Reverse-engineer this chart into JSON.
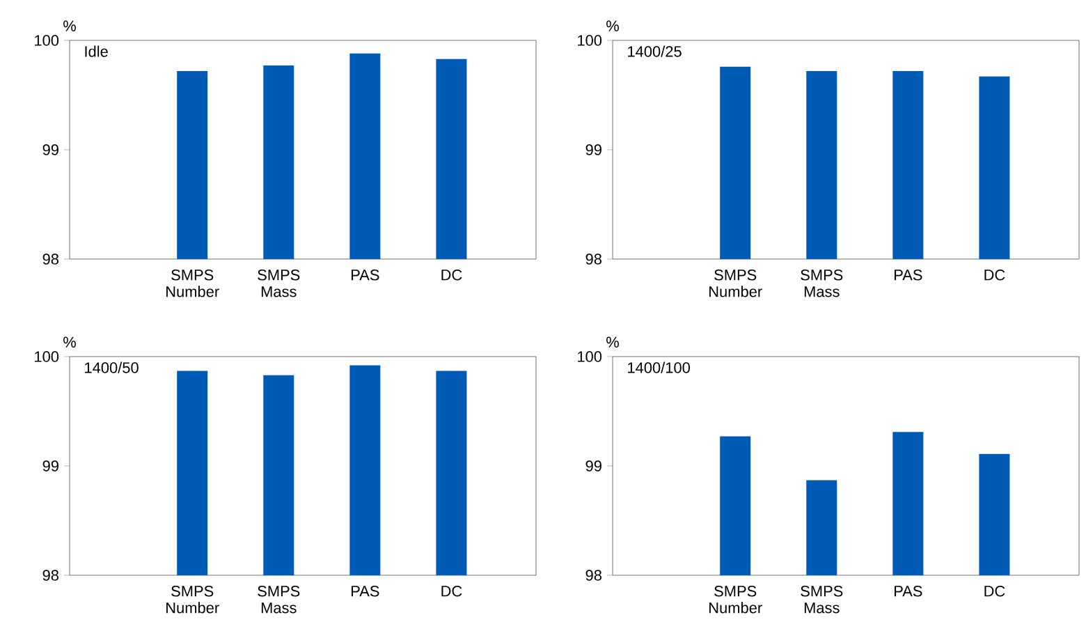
{
  "chart_data": [
    {
      "type": "bar",
      "title": "Idle",
      "ylabel": "%",
      "categories": [
        null,
        "SMPS Number",
        "SMPS Mass",
        "PAS",
        "DC"
      ],
      "values": [
        null,
        99.72,
        99.77,
        99.88,
        99.83
      ],
      "color": "#005bb5",
      "ylim": [
        98,
        100
      ],
      "yticks": [
        98,
        99,
        100
      ]
    },
    {
      "type": "bar",
      "title": "1400/25",
      "ylabel": "%",
      "categories": [
        null,
        "SMPS Number",
        "SMPS Mass",
        "PAS",
        "DC"
      ],
      "values": [
        null,
        99.76,
        99.72,
        99.72,
        99.67
      ],
      "color": "#005bb5",
      "ylim": [
        98,
        100
      ],
      "yticks": [
        98,
        99,
        100
      ]
    },
    {
      "type": "bar",
      "title": "1400/50",
      "ylabel": "%",
      "categories": [
        null,
        "SMPS Number",
        "SMPS Mass",
        "PAS",
        "DC"
      ],
      "values": [
        null,
        99.87,
        99.83,
        99.92,
        99.87
      ],
      "color": "#005bb5",
      "ylim": [
        98,
        100
      ],
      "yticks": [
        98,
        99,
        100
      ]
    },
    {
      "type": "bar",
      "title": "1400/100",
      "ylabel": "%",
      "categories": [
        null,
        "SMPS Number",
        "SMPS Mass",
        "PAS",
        "DC"
      ],
      "values": [
        null,
        99.27,
        98.87,
        99.31,
        99.11
      ],
      "color": "#005bb5",
      "ylim": [
        98,
        100
      ],
      "yticks": [
        98,
        99,
        100
      ]
    }
  ]
}
